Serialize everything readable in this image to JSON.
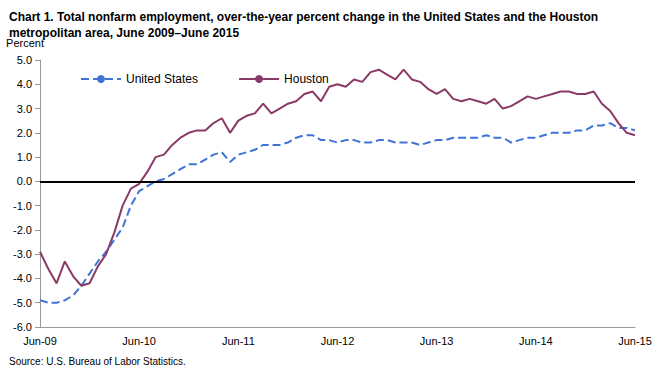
{
  "chart_data": {
    "type": "line",
    "title": "Chart 1. Total nonfarm employment, over-the-year percent change in the United States and the Houston metropolitan area, June 2009–June 2015",
    "y_label": "Percent",
    "source": "Source: U.S. Bureau of Labor Statistics.",
    "categories": [
      "Jun-09",
      null,
      null,
      null,
      null,
      null,
      null,
      null,
      null,
      null,
      null,
      null,
      "Jun-10",
      null,
      null,
      null,
      null,
      null,
      null,
      null,
      null,
      null,
      null,
      null,
      "Jun-11",
      null,
      null,
      null,
      null,
      null,
      null,
      null,
      null,
      null,
      null,
      null,
      "Jun-12",
      null,
      null,
      null,
      null,
      null,
      null,
      null,
      null,
      null,
      null,
      null,
      "Jun-13",
      null,
      null,
      null,
      null,
      null,
      null,
      null,
      null,
      null,
      null,
      null,
      "Jun-14",
      null,
      null,
      null,
      null,
      null,
      null,
      null,
      null,
      null,
      null,
      null,
      "Jun-15"
    ],
    "series": [
      {
        "name": "United States",
        "color": "#3f74d6",
        "line_style": "dashed",
        "values": [
          -4.9,
          -5.0,
          -5.0,
          -4.9,
          -4.7,
          -4.3,
          -3.8,
          -3.3,
          -2.9,
          -2.4,
          -1.9,
          -1.0,
          -0.4,
          -0.2,
          0.0,
          0.1,
          0.3,
          0.5,
          0.7,
          0.7,
          0.9,
          1.1,
          1.2,
          0.8,
          1.1,
          1.2,
          1.3,
          1.5,
          1.5,
          1.5,
          1.6,
          1.8,
          1.9,
          1.9,
          1.7,
          1.7,
          1.6,
          1.7,
          1.7,
          1.6,
          1.6,
          1.7,
          1.7,
          1.6,
          1.6,
          1.6,
          1.5,
          1.6,
          1.7,
          1.7,
          1.8,
          1.8,
          1.8,
          1.8,
          1.9,
          1.8,
          1.8,
          1.6,
          1.7,
          1.8,
          1.8,
          1.9,
          2.0,
          2.0,
          2.0,
          2.1,
          2.1,
          2.3,
          2.3,
          2.4,
          2.2,
          2.2,
          2.1
        ]
      },
      {
        "name": "Houston",
        "color": "#8a3a66",
        "line_style": "solid",
        "values": [
          -2.9,
          -3.6,
          -4.2,
          -3.3,
          -3.9,
          -4.3,
          -4.2,
          -3.5,
          -3.0,
          -2.1,
          -1.0,
          -0.3,
          -0.1,
          0.4,
          1.0,
          1.1,
          1.5,
          1.8,
          2.0,
          2.1,
          2.1,
          2.4,
          2.6,
          2.0,
          2.5,
          2.7,
          2.8,
          3.2,
          2.8,
          3.0,
          3.2,
          3.3,
          3.6,
          3.7,
          3.3,
          3.9,
          4.0,
          3.9,
          4.2,
          4.1,
          4.5,
          4.6,
          4.4,
          4.2,
          4.6,
          4.2,
          4.1,
          3.8,
          3.6,
          3.8,
          3.4,
          3.3,
          3.4,
          3.3,
          3.2,
          3.4,
          3.0,
          3.1,
          3.3,
          3.5,
          3.4,
          3.5,
          3.6,
          3.7,
          3.7,
          3.6,
          3.6,
          3.7,
          3.2,
          2.9,
          2.4,
          2.0,
          1.9
        ]
      }
    ],
    "ylim": [
      -6,
      5
    ],
    "yticks": [
      {
        "value": -6,
        "label": "-6.0"
      },
      {
        "value": -5,
        "label": "-5.0"
      },
      {
        "value": -4,
        "label": "-4.0"
      },
      {
        "value": -3,
        "label": "-3.0"
      },
      {
        "value": -2,
        "label": "-2.0"
      },
      {
        "value": -1,
        "label": "-1.0"
      },
      {
        "value": 0,
        "label": "0.0"
      },
      {
        "value": 1,
        "label": "1.0"
      },
      {
        "value": 2,
        "label": "2.0"
      },
      {
        "value": 3,
        "label": "3.0"
      },
      {
        "value": 4,
        "label": "4.0"
      },
      {
        "value": 5,
        "label": "5.0"
      }
    ],
    "grid": false,
    "legend": "upper left"
  }
}
